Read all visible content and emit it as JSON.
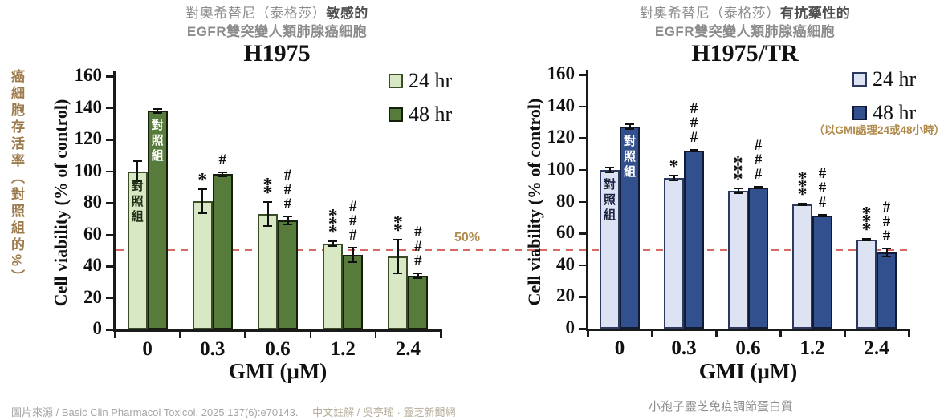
{
  "page": {
    "footer_source": "圖片來源 / Basic Clin Pharmacol Toxicol. 2025;137(6):e70143.",
    "footer_credit": "中文註解 / 吳亭瑤 · 靈芝新聞網",
    "ref_line_label": "50%",
    "left_axis_note": "癌細胞存活率（對照組的%）"
  },
  "colors": {
    "ref_line": "#d4625c",
    "tan_annotation": "#b08a4a",
    "brown_note": "#9d7b4d",
    "header_gray": "#8c8c8c",
    "header_emphasis": "#4f4f4f",
    "footer_gray": "#a6a6a6",
    "footer_tan": "#b6ad9a",
    "axis_black": "#1a1a1a"
  },
  "chart_data": [
    {
      "type": "bar",
      "header": {
        "line1_normal": "對奧希替尼（泰格莎）",
        "line1_bold": "敏感的",
        "line2": "EGFR雙突變人類肺腺癌細胞"
      },
      "title": "H1975",
      "ylabel": "Cell viability (% of control)",
      "xlabel": "GMI (μM)",
      "footnote": "",
      "legend_note": "",
      "ylim": [
        0,
        160
      ],
      "yticks": [
        160,
        140,
        120,
        100,
        80,
        60,
        40,
        20,
        0
      ],
      "categories": [
        "0",
        "0.3",
        "0.6",
        "1.2",
        "2.4"
      ],
      "ref_line": 50,
      "control_label": "對照組",
      "legend_position": "top-right-inside",
      "grid": false,
      "series": [
        {
          "name": "24 hr",
          "fill": "#d8e7c4",
          "border": "#3a4d26",
          "label_color": "#1f2d14",
          "values": [
            100,
            81,
            73,
            54,
            46
          ],
          "errors": [
            7,
            8,
            8,
            2,
            11
          ],
          "markers": [
            "",
            "*",
            "**",
            "***",
            "**"
          ]
        },
        {
          "name": "48 hr",
          "fill": "#567b3a",
          "border": "#15200c",
          "label_color": "#ffffff",
          "values": [
            138,
            98,
            69,
            47,
            34
          ],
          "errors": [
            2,
            2,
            3,
            5,
            2
          ],
          "markers": [
            "",
            "#",
            "###",
            "###",
            "###"
          ]
        }
      ]
    },
    {
      "type": "bar",
      "header": {
        "line1_normal": "對奧希替尼（泰格莎）",
        "line1_bold": "有抗藥性的",
        "line2": "EGFR雙突變人類肺腺癌細胞"
      },
      "title": "H1975/TR",
      "ylabel": "Cell viability (% of control)",
      "xlabel": "GMI (μM)",
      "footnote": "小孢子靈芝免疫調節蛋白質",
      "legend_note": "（以GMI處理24或48小時）",
      "ylim": [
        0,
        160
      ],
      "yticks": [
        160,
        140,
        120,
        100,
        80,
        60,
        40,
        20,
        0
      ],
      "categories": [
        "0",
        "0.3",
        "0.6",
        "1.2",
        "2.4"
      ],
      "ref_line": 50,
      "control_label": "對照組",
      "legend_position": "top-right-inside",
      "grid": false,
      "series": [
        {
          "name": "24 hr",
          "fill": "#dde3f3",
          "border": "#2c3a60",
          "label_color": "#1a2340",
          "values": [
            100,
            95,
            87,
            78,
            56
          ],
          "errors": [
            2,
            2,
            2,
            1,
            1
          ],
          "markers": [
            "",
            "*",
            "***",
            "***",
            "***"
          ]
        },
        {
          "name": "48 hr",
          "fill": "#33508e",
          "border": "#111b33",
          "label_color": "#ffffff",
          "values": [
            127,
            112,
            89,
            71,
            48
          ],
          "errors": [
            2,
            1,
            1,
            1,
            3
          ],
          "markers": [
            "",
            "###",
            "###",
            "###",
            "###"
          ]
        }
      ]
    }
  ]
}
